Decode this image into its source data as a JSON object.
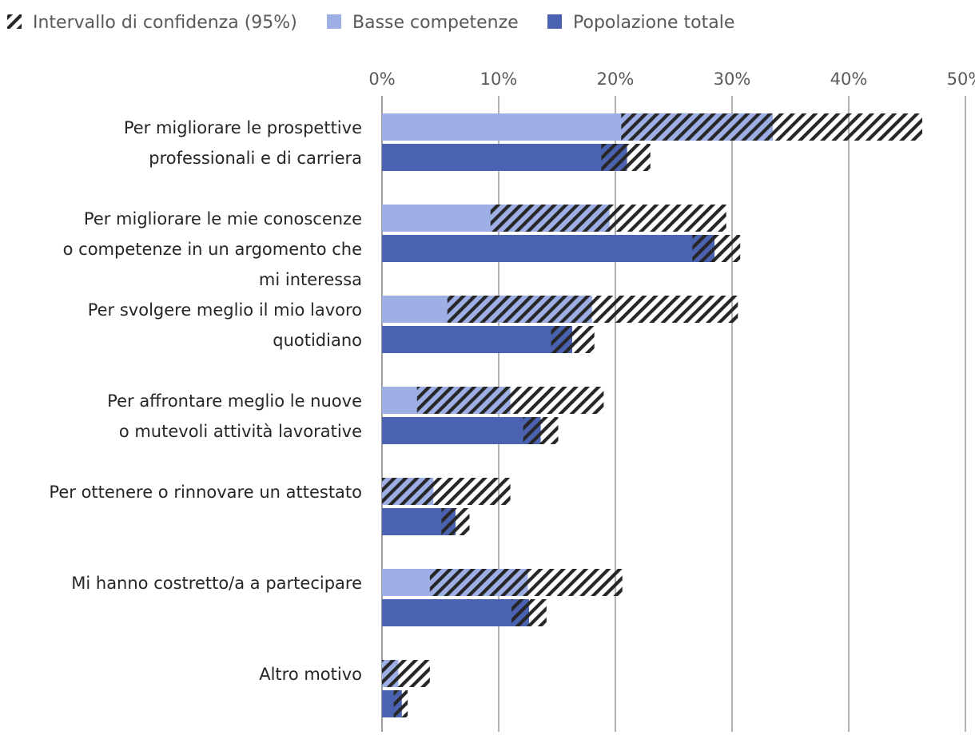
{
  "chart_data": {
    "type": "bar",
    "orientation": "horizontal",
    "title": "",
    "xlabel": "",
    "ylabel": "",
    "xlim": [
      0,
      50
    ],
    "x_ticks": [
      "0%",
      "10%",
      "20%",
      "30%",
      "40%",
      "50%"
    ],
    "grid": true,
    "legend_position": "top",
    "legend": {
      "ci": "Intervallo di confidenza (95%)",
      "low": "Basse competenze",
      "total": "Popolazione totale"
    },
    "categories": [
      [
        "Per migliorare le prospettive",
        "professionali e di carriera"
      ],
      [
        "Per migliorare le mie conoscenze",
        "o competenze in un argomento che",
        "mi interessa"
      ],
      [
        "Per svolgere meglio il mio lavoro",
        "quotidiano"
      ],
      [
        "Per affrontare meglio le nuove",
        "o mutevoli attività lavorative"
      ],
      [
        "Per ottenere o rinnovare un attestato"
      ],
      [
        "Mi hanno costretto/a a partecipare"
      ],
      [
        "Altro motivo"
      ]
    ],
    "series": [
      {
        "name": "Basse competenze",
        "color": "#9DAFE5",
        "values": [
          33.5,
          19.5,
          18.0,
          11.0,
          4.4,
          12.5,
          1.4
        ],
        "ci_low": [
          20.5,
          9.3,
          5.6,
          3.0,
          0.0,
          4.1,
          0.0
        ],
        "ci_high": [
          46.3,
          29.5,
          30.5,
          19.0,
          11.0,
          20.6,
          4.1
        ]
      },
      {
        "name": "Popolazione totale",
        "color": "#4A62B0",
        "values": [
          21.0,
          28.5,
          16.3,
          13.6,
          6.3,
          12.6,
          1.7
        ],
        "ci_low": [
          18.8,
          26.6,
          14.5,
          12.1,
          5.1,
          11.1,
          1.0
        ],
        "ci_high": [
          23.0,
          30.7,
          18.2,
          15.1,
          7.5,
          14.1,
          2.2
        ]
      }
    ],
    "hatch_color": "#262626",
    "grid_color": "#808080"
  }
}
